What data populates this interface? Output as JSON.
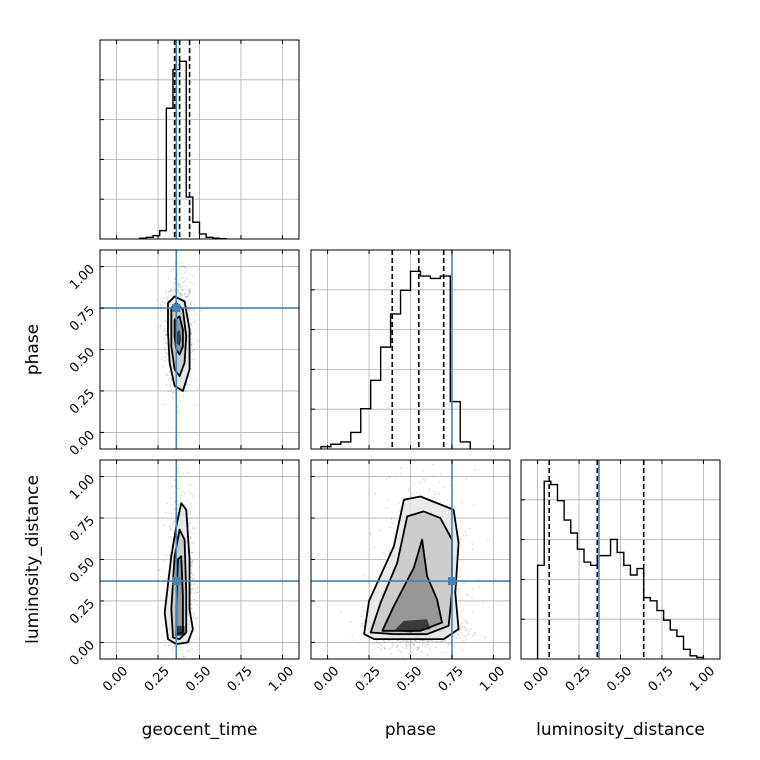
{
  "colors": {
    "truth": "#4682b4",
    "line": "#000000",
    "grid": "#b0b0b0",
    "scatter": "#9a9a9a"
  },
  "chart_data": {
    "type": "corner",
    "parameters": [
      "geocent_time",
      "phase",
      "luminosity_distance"
    ],
    "truths": {
      "geocent_time": 0.36,
      "phase": 0.75,
      "luminosity_distance": 0.37
    },
    "axis_range": [
      -0.1,
      1.1
    ],
    "tick_labels": [
      "0.00",
      "0.25",
      "0.50",
      "0.75",
      "1.00"
    ],
    "grid": true,
    "histograms": [
      {
        "parameter": "geocent_time",
        "quantiles": [
          0.35,
          0.38,
          0.44
        ],
        "bins": [
          0.14,
          0.18,
          0.22,
          0.26,
          0.3,
          0.34,
          0.38,
          0.42,
          0.46,
          0.5,
          0.54,
          0.58,
          0.62,
          0.66
        ],
        "values": [
          0.5,
          1,
          2,
          5,
          78,
          101,
          106,
          25,
          10,
          3,
          1,
          0.5,
          0.2
        ]
      },
      {
        "parameter": "phase",
        "quantiles": [
          0.39,
          0.55,
          0.7
        ],
        "bins": [
          -0.04,
          0.02,
          0.08,
          0.14,
          0.2,
          0.26,
          0.32,
          0.38,
          0.44,
          0.5,
          0.56,
          0.62,
          0.68,
          0.74,
          0.8,
          0.86
        ],
        "values": [
          1,
          2,
          3,
          7,
          17,
          29,
          43,
          57,
          67,
          75,
          73,
          72,
          73,
          20,
          3
        ]
      },
      {
        "parameter": "luminosity_distance",
        "quantiles": [
          0.07,
          0.36,
          0.64
        ],
        "bins": [
          0.0,
          0.04,
          0.08,
          0.12,
          0.16,
          0.2,
          0.24,
          0.28,
          0.32,
          0.36,
          0.4,
          0.44,
          0.48,
          0.52,
          0.56,
          0.6,
          0.64,
          0.68,
          0.72,
          0.76,
          0.8,
          0.84,
          0.88,
          0.92,
          0.96,
          1.0
        ],
        "values": [
          29,
          55,
          54,
          49,
          43,
          39,
          34,
          30,
          29,
          32,
          32,
          37,
          33,
          29,
          26,
          28,
          19,
          18,
          15,
          12,
          9,
          7,
          3,
          1,
          0.5
        ]
      }
    ],
    "panels": [
      {
        "x": "geocent_time",
        "y": "phase",
        "density": [
          {
            "x": 0.38,
            "y": 0.6,
            "sx": 0.04,
            "sy": 0.17,
            "w": 1.0
          }
        ],
        "contours": [
          [
            [
              0.31,
              0.78
            ],
            [
              0.35,
              0.82
            ],
            [
              0.41,
              0.79
            ],
            [
              0.44,
              0.62
            ],
            [
              0.44,
              0.38
            ],
            [
              0.4,
              0.25
            ],
            [
              0.35,
              0.28
            ],
            [
              0.32,
              0.42
            ],
            [
              0.31,
              0.6
            ]
          ],
          [
            [
              0.33,
              0.75
            ],
            [
              0.36,
              0.78
            ],
            [
              0.4,
              0.74
            ],
            [
              0.42,
              0.58
            ],
            [
              0.41,
              0.42
            ],
            [
              0.38,
              0.34
            ],
            [
              0.35,
              0.38
            ],
            [
              0.33,
              0.52
            ]
          ],
          [
            [
              0.35,
              0.68
            ],
            [
              0.38,
              0.7
            ],
            [
              0.4,
              0.62
            ],
            [
              0.4,
              0.52
            ],
            [
              0.38,
              0.47
            ],
            [
              0.36,
              0.5
            ],
            [
              0.35,
              0.58
            ]
          ],
          [
            [
              0.36,
              0.6
            ],
            [
              0.38,
              0.62
            ],
            [
              0.39,
              0.56
            ],
            [
              0.38,
              0.52
            ],
            [
              0.36,
              0.54
            ]
          ]
        ]
      },
      {
        "x": "geocent_time",
        "y": "luminosity_distance",
        "density": [
          {
            "x": 0.39,
            "y": 0.4,
            "sx": 0.035,
            "sy": 0.24,
            "w": 1.0
          }
        ],
        "contours": [
          [
            [
              0.31,
              0.02
            ],
            [
              0.29,
              0.18
            ],
            [
              0.33,
              0.52
            ],
            [
              0.36,
              0.7
            ],
            [
              0.39,
              0.84
            ],
            [
              0.42,
              0.8
            ],
            [
              0.44,
              0.5
            ],
            [
              0.44,
              0.2
            ],
            [
              0.46,
              0.08
            ],
            [
              0.43,
              0.0
            ],
            [
              0.36,
              -0.01
            ]
          ],
          [
            [
              0.34,
              0.03
            ],
            [
              0.33,
              0.2
            ],
            [
              0.35,
              0.52
            ],
            [
              0.38,
              0.68
            ],
            [
              0.41,
              0.62
            ],
            [
              0.42,
              0.3
            ],
            [
              0.42,
              0.06
            ],
            [
              0.38,
              0.02
            ]
          ],
          [
            [
              0.36,
              0.05
            ],
            [
              0.36,
              0.22
            ],
            [
              0.37,
              0.5
            ],
            [
              0.39,
              0.52
            ],
            [
              0.4,
              0.28
            ],
            [
              0.4,
              0.06
            ]
          ],
          [
            [
              0.35,
              0.04
            ],
            [
              0.36,
              0.1
            ],
            [
              0.41,
              0.1
            ],
            [
              0.41,
              0.04
            ]
          ]
        ]
      },
      {
        "x": "phase",
        "y": "luminosity_distance",
        "density": [
          {
            "x": 0.52,
            "y": 0.08,
            "sx": 0.13,
            "sy": 0.05,
            "w": 1.2
          },
          {
            "x": 0.58,
            "y": 0.45,
            "sx": 0.13,
            "sy": 0.28,
            "w": 0.6
          }
        ],
        "contours": [
          [
            [
              0.22,
              0.05
            ],
            [
              0.25,
              0.25
            ],
            [
              0.4,
              0.58
            ],
            [
              0.46,
              0.86
            ],
            [
              0.56,
              0.88
            ],
            [
              0.66,
              0.84
            ],
            [
              0.76,
              0.8
            ],
            [
              0.79,
              0.6
            ],
            [
              0.77,
              0.3
            ],
            [
              0.79,
              0.08
            ],
            [
              0.7,
              0.02
            ],
            [
              0.45,
              0.02
            ],
            [
              0.28,
              0.02
            ]
          ],
          [
            [
              0.26,
              0.06
            ],
            [
              0.32,
              0.24
            ],
            [
              0.42,
              0.48
            ],
            [
              0.48,
              0.76
            ],
            [
              0.58,
              0.79
            ],
            [
              0.68,
              0.75
            ],
            [
              0.75,
              0.62
            ],
            [
              0.75,
              0.3
            ],
            [
              0.73,
              0.1
            ],
            [
              0.6,
              0.05
            ],
            [
              0.4,
              0.05
            ]
          ],
          [
            [
              0.33,
              0.07
            ],
            [
              0.4,
              0.22
            ],
            [
              0.52,
              0.45
            ],
            [
              0.57,
              0.62
            ],
            [
              0.6,
              0.4
            ],
            [
              0.66,
              0.26
            ],
            [
              0.69,
              0.12
            ],
            [
              0.56,
              0.07
            ]
          ],
          [
            [
              0.4,
              0.07
            ],
            [
              0.46,
              0.13
            ],
            [
              0.6,
              0.14
            ],
            [
              0.62,
              0.08
            ],
            [
              0.5,
              0.06
            ]
          ]
        ]
      }
    ]
  }
}
